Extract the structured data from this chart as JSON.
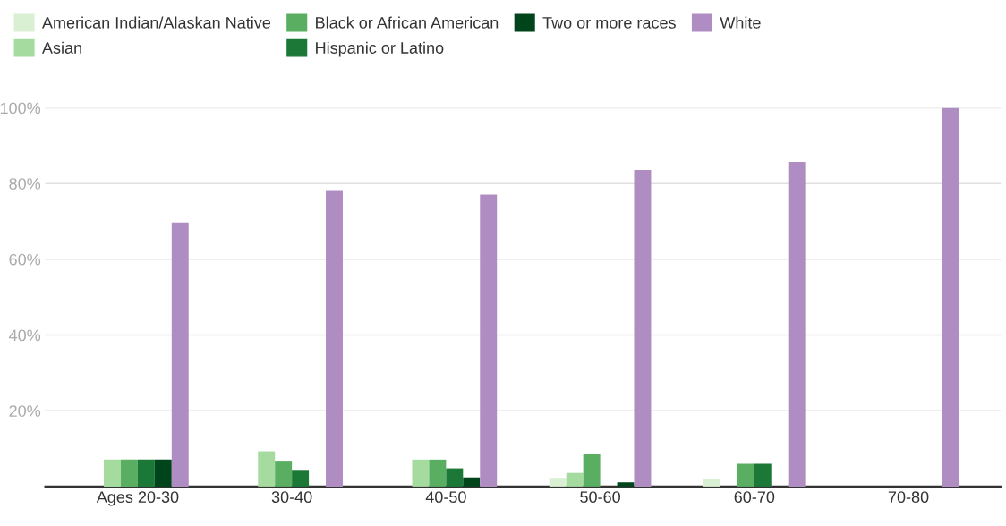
{
  "chart_data": {
    "type": "bar",
    "categories": [
      "Ages 20-30",
      "30-40",
      "40-50",
      "50-60",
      "60-70",
      "70-80"
    ],
    "series": [
      {
        "name": "American Indian/Alaskan Native",
        "color": "#d9f0d3",
        "values": [
          0,
          0,
          0,
          2.3,
          1.9,
          0
        ]
      },
      {
        "name": "Asian",
        "color": "#a6dba0",
        "values": [
          7.1,
          9.3,
          7.1,
          3.6,
          0,
          0
        ]
      },
      {
        "name": "Black or African American",
        "color": "#5aae61",
        "values": [
          7.1,
          6.8,
          7.1,
          8.5,
          6.0,
          0
        ]
      },
      {
        "name": "Hispanic or Latino",
        "color": "#1b7837",
        "values": [
          7.1,
          4.4,
          4.8,
          0,
          6.0,
          0
        ]
      },
      {
        "name": "Two or more races",
        "color": "#00441b",
        "values": [
          7.1,
          0,
          2.4,
          1.1,
          0,
          0
        ]
      },
      {
        "name": "White",
        "color": "#af8dc3",
        "values": [
          69.7,
          78.3,
          77.1,
          83.6,
          85.7,
          100
        ]
      }
    ],
    "ylim": [
      0,
      100
    ],
    "yticks": [
      {
        "value": 20,
        "label": "20%"
      },
      {
        "value": 40,
        "label": "40%"
      },
      {
        "value": 60,
        "label": "60%"
      },
      {
        "value": 80,
        "label": "80%"
      },
      {
        "value": 100,
        "label": "100%"
      }
    ],
    "grid": "y",
    "legend": "top left"
  }
}
